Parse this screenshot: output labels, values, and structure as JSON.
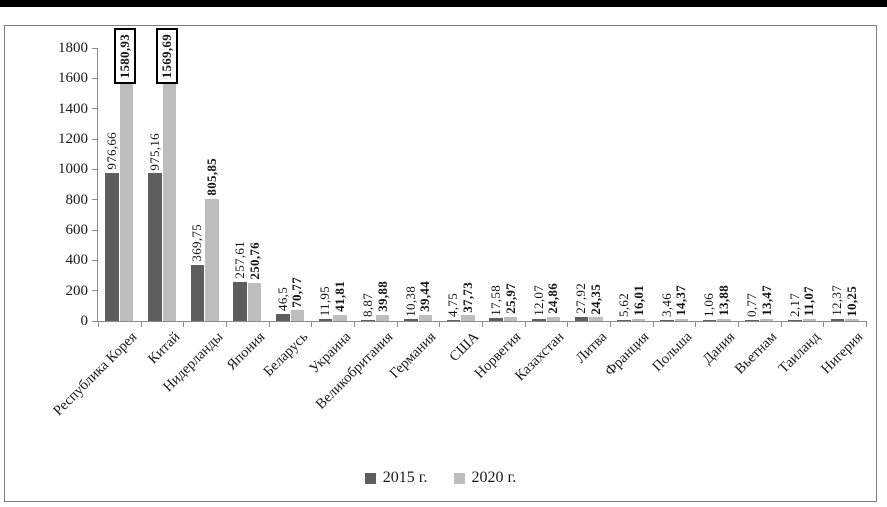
{
  "chart_data": {
    "type": "bar",
    "title": "",
    "xlabel": "",
    "ylabel": "",
    "ylim": [
      0,
      1800
    ],
    "y_ticks": [
      0,
      200,
      400,
      600,
      800,
      1000,
      1200,
      1400,
      1600,
      1800
    ],
    "grid": false,
    "legend_position": "bottom",
    "categories": [
      "Республика Корея",
      "Китай",
      "Нидерланды",
      "Япония",
      "Беларусь",
      "Украина",
      "Великобритания",
      "Германия",
      "США",
      "Норвегия",
      "Казахстан",
      "Литва",
      "Франция",
      "Польша",
      "Дания",
      "Вьетнам",
      "Таиланд",
      "Нигерия"
    ],
    "series": [
      {
        "name": "2015 г.",
        "color": "#5e5e5e",
        "bold_labels": false,
        "boxed_label_indices": [],
        "values": [
          976.66,
          975.16,
          369.75,
          257.61,
          46.5,
          11.95,
          8.87,
          10.38,
          4.75,
          17.58,
          12.07,
          27.92,
          5.62,
          3.46,
          1.06,
          0.77,
          2.17,
          12.37
        ],
        "labels": [
          "976,66",
          "975,16",
          "369,75",
          "257,61",
          "46,5",
          "11,95",
          "8,87",
          "10,38",
          "4,75",
          "17,58",
          "12,07",
          "27,92",
          "5,62",
          "3,46",
          "1,06",
          "0,77",
          "2,17",
          "12,37"
        ]
      },
      {
        "name": "2020 г.",
        "color": "#bdbdbd",
        "bold_labels": true,
        "boxed_label_indices": [
          0,
          1
        ],
        "values": [
          1580.93,
          1569.69,
          805.85,
          250.76,
          70.77,
          41.81,
          39.88,
          39.44,
          37.73,
          25.97,
          24.86,
          24.35,
          16.01,
          14.37,
          13.88,
          13.47,
          11.07,
          10.25
        ],
        "labels": [
          "1580,93",
          "1569,69",
          "805,85",
          "250,76",
          "70,77",
          "41,81",
          "39,88",
          "39,44",
          "37,73",
          "25,97",
          "24,86",
          "24,35",
          "16,01",
          "14,37",
          "13,88",
          "13,47",
          "11,07",
          "10,25"
        ]
      }
    ],
    "legend": [
      "2015 г.",
      "2020 г."
    ]
  }
}
